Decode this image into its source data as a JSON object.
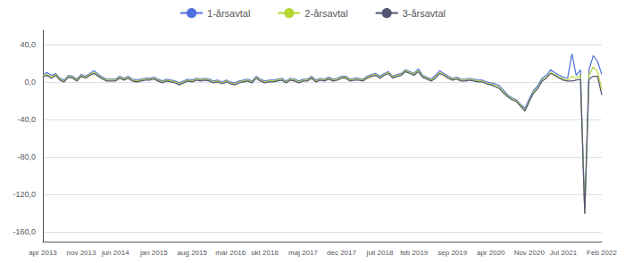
{
  "chart_data": {
    "type": "line",
    "categories": [
      "apr 2013",
      null,
      null,
      null,
      null,
      null,
      null,
      null,
      null,
      "nov 2013",
      null,
      null,
      null,
      null,
      null,
      null,
      null,
      "jun 2014",
      null,
      null,
      null,
      null,
      null,
      null,
      null,
      null,
      "jan 2015",
      null,
      null,
      null,
      null,
      null,
      null,
      null,
      null,
      "aug 2015",
      null,
      null,
      null,
      null,
      null,
      null,
      null,
      null,
      "mar 2016",
      null,
      null,
      null,
      null,
      null,
      null,
      null,
      "okt 2016",
      null,
      null,
      null,
      null,
      null,
      null,
      null,
      null,
      "maj 2017",
      null,
      null,
      null,
      null,
      null,
      null,
      null,
      null,
      "dec 2017",
      null,
      null,
      null,
      null,
      null,
      null,
      null,
      null,
      "juli 2018",
      null,
      null,
      null,
      null,
      null,
      null,
      null,
      "feb 2019",
      null,
      null,
      null,
      null,
      null,
      null,
      null,
      null,
      "sep 2019",
      null,
      null,
      null,
      null,
      null,
      null,
      null,
      null,
      "apr 2020",
      null,
      null,
      null,
      null,
      null,
      null,
      null,
      null,
      "Nov 2020",
      null,
      null,
      null,
      null,
      null,
      null,
      null,
      "Jul 2021",
      null,
      null,
      null,
      null,
      null,
      null,
      null,
      null,
      "Feb 2022"
    ],
    "series": [
      {
        "name": "1-årsavtal",
        "values": [
          8,
          10,
          7,
          9,
          4,
          2,
          7,
          6,
          3,
          8,
          6,
          9,
          12,
          8,
          5,
          3,
          3,
          3,
          6,
          4,
          6,
          3,
          2,
          3,
          4,
          4,
          5,
          3,
          1,
          3,
          2,
          1,
          -1,
          1,
          3,
          2,
          4,
          3,
          4,
          3,
          1,
          2,
          0,
          2,
          0,
          -1,
          1,
          2,
          3,
          1,
          6,
          3,
          1,
          2,
          2,
          3,
          4,
          1,
          4,
          3,
          1,
          3,
          3,
          6,
          2,
          4,
          3,
          5,
          3,
          4,
          6,
          6,
          3,
          4,
          4,
          3,
          6,
          8,
          9,
          6,
          9,
          11,
          6,
          8,
          9,
          13,
          11,
          9,
          14,
          7,
          5,
          3,
          7,
          12,
          9,
          6,
          4,
          5,
          3,
          3,
          4,
          3,
          2,
          2,
          0,
          -1,
          -2,
          -4,
          -9,
          -14,
          -17,
          -19,
          -24,
          -28,
          -18,
          -9,
          -4,
          4,
          7,
          13,
          10,
          7,
          5,
          4,
          30,
          7,
          13,
          -140,
          13,
          28,
          22,
          8
        ]
      },
      {
        "name": "2-årsavtal",
        "values": [
          7,
          8,
          5,
          8,
          3,
          1,
          6,
          5,
          2,
          7,
          5,
          8,
          10,
          7,
          4,
          2,
          2,
          2,
          5,
          3,
          5,
          2,
          1,
          2,
          3,
          3,
          4,
          2,
          0,
          2,
          1,
          0,
          -2,
          0,
          2,
          1,
          3,
          2,
          3,
          2,
          0,
          1,
          -1,
          1,
          -1,
          -2,
          0,
          1,
          2,
          0,
          5,
          2,
          0,
          1,
          1,
          2,
          3,
          0,
          3,
          2,
          0,
          2,
          2,
          5,
          1,
          3,
          2,
          4,
          2,
          3,
          5,
          5,
          2,
          3,
          3,
          2,
          5,
          7,
          8,
          5,
          8,
          10,
          5,
          7,
          8,
          12,
          10,
          8,
          12,
          6,
          4,
          2,
          5,
          10,
          8,
          5,
          3,
          4,
          2,
          2,
          3,
          2,
          1,
          1,
          -1,
          -2,
          -4,
          -6,
          -11,
          -15,
          -18,
          -20,
          -25,
          -30,
          -20,
          -11,
          -6,
          2,
          5,
          10,
          8,
          5,
          3,
          2,
          6,
          4,
          7,
          -140,
          7,
          16,
          11,
          -8
        ]
      },
      {
        "name": "3-årsavtal",
        "values": [
          6,
          7,
          4,
          7,
          2,
          0,
          5,
          4,
          1,
          6,
          4,
          7,
          9,
          6,
          3,
          1,
          1,
          1,
          4,
          2,
          4,
          1,
          0,
          1,
          2,
          2,
          3,
          1,
          -1,
          1,
          0,
          -1,
          -3,
          -1,
          1,
          0,
          2,
          1,
          2,
          1,
          -1,
          0,
          -2,
          0,
          -2,
          -3,
          -1,
          0,
          1,
          -1,
          4,
          1,
          -1,
          0,
          0,
          1,
          2,
          -1,
          2,
          1,
          -1,
          1,
          1,
          4,
          0,
          2,
          1,
          3,
          1,
          2,
          4,
          4,
          1,
          2,
          2,
          1,
          4,
          6,
          7,
          4,
          7,
          9,
          4,
          6,
          7,
          11,
          9,
          7,
          11,
          5,
          3,
          1,
          4,
          9,
          7,
          4,
          2,
          3,
          1,
          1,
          2,
          1,
          0,
          0,
          -2,
          -3,
          -5,
          -7,
          -12,
          -16,
          -19,
          -21,
          -26,
          -31,
          -21,
          -12,
          -7,
          1,
          4,
          9,
          7,
          4,
          2,
          1,
          1,
          2,
          3,
          -140,
          3,
          6,
          6,
          -14
        ]
      }
    ],
    "ylim": [
      -170,
      55
    ],
    "yticks": [
      {
        "value": -160,
        "label": "-160,0"
      },
      {
        "value": -120,
        "label": "-120,0"
      },
      {
        "value": -80,
        "label": "-80,0"
      },
      {
        "value": -40,
        "label": "-40,0"
      },
      {
        "value": 0,
        "label": "0,0"
      },
      {
        "value": 40,
        "label": "40,0"
      }
    ],
    "grid": true,
    "legend": "top"
  }
}
